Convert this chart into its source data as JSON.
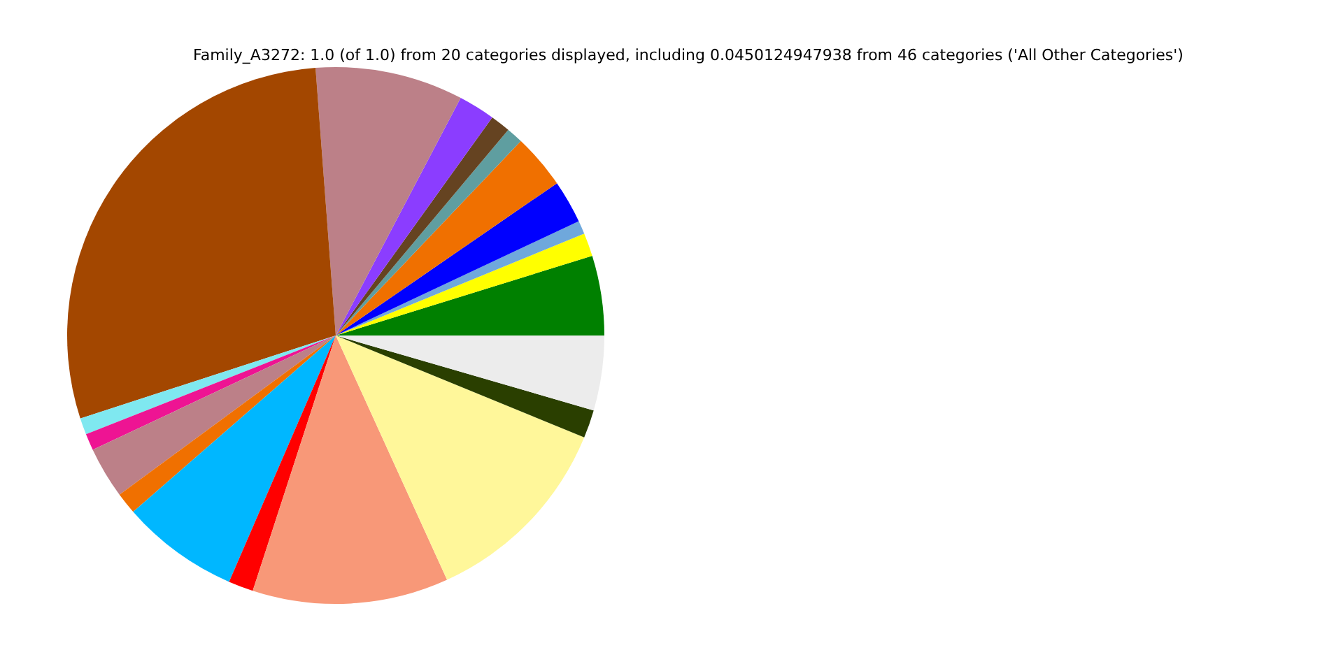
{
  "chart_data": {
    "type": "pie",
    "title": "Family_A3272: 1.0 (of 1.0) from 20 categories displayed, including 0.0450124947938 from 46 categories ('All Other Categories')",
    "categories": [
      null,
      null,
      null,
      null,
      null,
      null,
      null,
      null,
      null,
      null,
      null,
      null,
      null,
      null,
      null,
      null,
      null,
      null,
      null,
      null
    ],
    "values": [
      4.8,
      1.4,
      0.8,
      2.6,
      3.3,
      1.0,
      1.2,
      2.2,
      8.9,
      28.8,
      1.0,
      1.0,
      3.1,
      1.3,
      7.1,
      1.5,
      11.8,
      12.0,
      1.7,
      4.5
    ],
    "colors": [
      "#008000",
      "#ffff00",
      "#6fa8dc",
      "#0000ff",
      "#f07000",
      "#5f9ea0",
      "#654321",
      "#8b3dff",
      "#bc8088",
      "#a34700",
      "#7fe8f0",
      "#ee1493",
      "#bc8088",
      "#f07000",
      "#00b7ff",
      "#ff0000",
      "#f89878",
      "#fff79a",
      "#2a3f00",
      "#ececec"
    ],
    "legend": false
  }
}
